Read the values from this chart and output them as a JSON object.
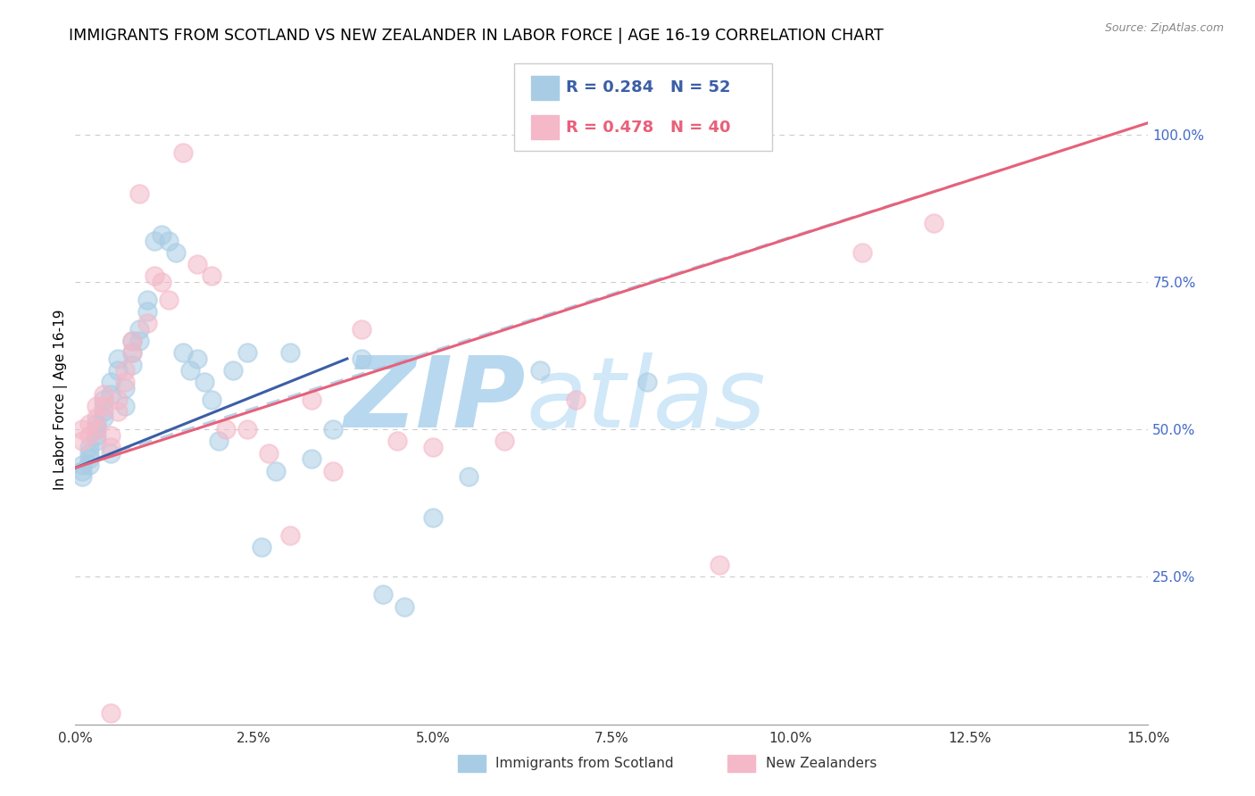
{
  "title": "IMMIGRANTS FROM SCOTLAND VS NEW ZEALANDER IN LABOR FORCE | AGE 16-19 CORRELATION CHART",
  "source_text": "Source: ZipAtlas.com",
  "ylabel": "In Labor Force | Age 16-19",
  "xlim": [
    0.0,
    0.15
  ],
  "ylim": [
    0.0,
    1.1
  ],
  "xtick_labels": [
    "0.0%",
    "2.5%",
    "5.0%",
    "7.5%",
    "10.0%",
    "12.5%",
    "15.0%"
  ],
  "xtick_values": [
    0.0,
    0.025,
    0.05,
    0.075,
    0.1,
    0.125,
    0.15
  ],
  "ytick_labels": [
    "25.0%",
    "50.0%",
    "75.0%",
    "100.0%"
  ],
  "ytick_values": [
    0.25,
    0.5,
    0.75,
    1.0
  ],
  "scatter_color_1": "#a8cce4",
  "scatter_color_2": "#f4b8c8",
  "line_color_1": "#3b5ea6",
  "line_color_2": "#e8607a",
  "dashed_line_color": "#a8cce4",
  "watermark_color": "#d0e8f8",
  "background_color": "#ffffff",
  "grid_color": "#cccccc",
  "right_axis_color": "#4169c8",
  "title_fontsize": 12.5,
  "axis_label_fontsize": 11,
  "tick_fontsize": 11,
  "scotland_x": [
    0.001,
    0.001,
    0.001,
    0.002,
    0.002,
    0.002,
    0.002,
    0.003,
    0.003,
    0.003,
    0.003,
    0.004,
    0.004,
    0.004,
    0.005,
    0.005,
    0.005,
    0.006,
    0.006,
    0.007,
    0.007,
    0.008,
    0.008,
    0.008,
    0.009,
    0.009,
    0.01,
    0.01,
    0.011,
    0.012,
    0.013,
    0.014,
    0.015,
    0.016,
    0.017,
    0.018,
    0.019,
    0.02,
    0.022,
    0.024,
    0.026,
    0.028,
    0.03,
    0.033,
    0.036,
    0.04,
    0.043,
    0.046,
    0.05,
    0.055,
    0.065,
    0.08
  ],
  "scotland_y": [
    0.44,
    0.43,
    0.42,
    0.47,
    0.45,
    0.46,
    0.44,
    0.5,
    0.48,
    0.51,
    0.49,
    0.55,
    0.53,
    0.52,
    0.58,
    0.56,
    0.46,
    0.62,
    0.6,
    0.57,
    0.54,
    0.65,
    0.63,
    0.61,
    0.67,
    0.65,
    0.72,
    0.7,
    0.82,
    0.83,
    0.82,
    0.8,
    0.63,
    0.6,
    0.62,
    0.58,
    0.55,
    0.48,
    0.6,
    0.63,
    0.3,
    0.43,
    0.63,
    0.45,
    0.5,
    0.62,
    0.22,
    0.2,
    0.35,
    0.42,
    0.6,
    0.58
  ],
  "nz_x": [
    0.001,
    0.001,
    0.002,
    0.002,
    0.003,
    0.003,
    0.003,
    0.004,
    0.004,
    0.005,
    0.005,
    0.006,
    0.006,
    0.007,
    0.007,
    0.008,
    0.008,
    0.009,
    0.01,
    0.011,
    0.012,
    0.013,
    0.015,
    0.017,
    0.019,
    0.021,
    0.024,
    0.027,
    0.03,
    0.033,
    0.036,
    0.04,
    0.045,
    0.05,
    0.06,
    0.07,
    0.09,
    0.11,
    0.12,
    0.005
  ],
  "nz_y": [
    0.5,
    0.48,
    0.51,
    0.49,
    0.54,
    0.52,
    0.5,
    0.56,
    0.54,
    0.49,
    0.47,
    0.55,
    0.53,
    0.6,
    0.58,
    0.65,
    0.63,
    0.9,
    0.68,
    0.76,
    0.75,
    0.72,
    0.97,
    0.78,
    0.76,
    0.5,
    0.5,
    0.46,
    0.32,
    0.55,
    0.43,
    0.67,
    0.48,
    0.47,
    0.48,
    0.55,
    0.27,
    0.8,
    0.85,
    0.02
  ],
  "blue_line_x": [
    0.0,
    0.038
  ],
  "blue_line_y": [
    0.435,
    0.62
  ],
  "pink_line_x": [
    0.0,
    0.15
  ],
  "pink_line_y": [
    0.435,
    1.02
  ],
  "dash_line_x": [
    0.0,
    0.15
  ],
  "dash_line_y": [
    0.44,
    1.02
  ]
}
